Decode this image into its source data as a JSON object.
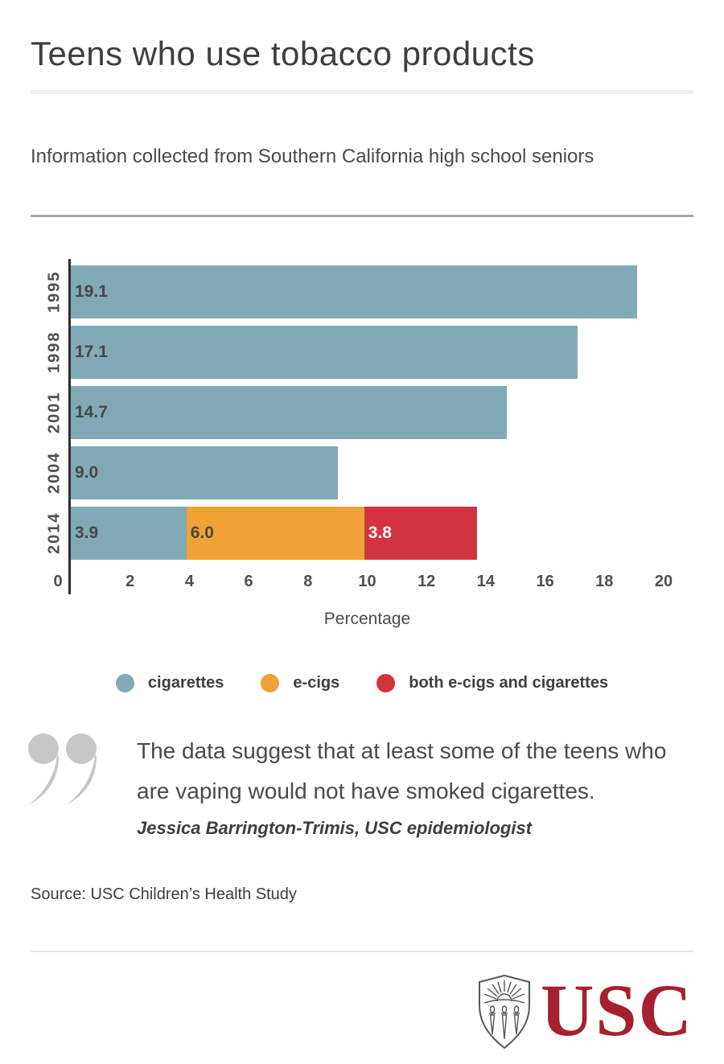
{
  "header": {
    "title": "Teens who use tobacco products",
    "subtitle": "Information collected from Southern California high school seniors"
  },
  "chart_data": {
    "type": "bar",
    "orientation": "horizontal",
    "stacked": true,
    "categories": [
      "1995",
      "1998",
      "2001",
      "2004",
      "2014"
    ],
    "series": [
      {
        "name": "cigarettes",
        "color": "#81aab6",
        "label_color": "#474747",
        "values": [
          19.1,
          17.1,
          14.7,
          9.0,
          3.9
        ]
      },
      {
        "name": "e-cigs",
        "color": "#f0a236",
        "label_color": "#474747",
        "values": [
          null,
          null,
          null,
          null,
          6.0
        ]
      },
      {
        "name": "both e-cigs and cigarettes",
        "color": "#d23340",
        "label_color": "#ffffff",
        "values": [
          null,
          null,
          null,
          null,
          3.8
        ]
      }
    ],
    "xlabel": "Percentage",
    "ylabel": "",
    "xlim": [
      0,
      20
    ],
    "xticks": [
      0,
      2,
      4,
      6,
      8,
      10,
      12,
      14,
      16,
      18,
      20
    ],
    "grid": false,
    "value_labels_shown": true,
    "legend_position": "bottom"
  },
  "quote": {
    "text": "The data suggest that at least some of the teens who are vaping would not have smoked cigarettes.",
    "attribution": "Jessica Barrington-Trimis, USC epidemiologist"
  },
  "source": "Source: USC Children’s Health Study",
  "footer": {
    "logo_text": "USC",
    "logo_color": "#a6202f"
  },
  "icons": {
    "quote_mark": "double-quote-icon",
    "logo_shield": "usc-shield-icon"
  }
}
